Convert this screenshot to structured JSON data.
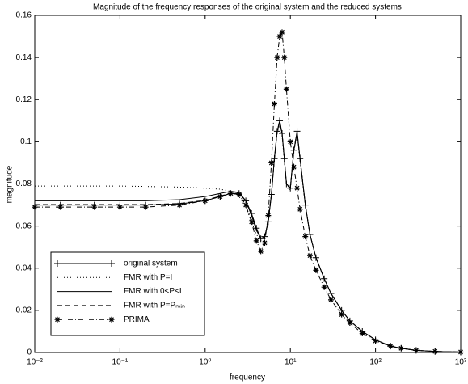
{
  "chart_data": {
    "type": "line",
    "title": "Magnitude of the frequency responses of the original system and the reduced systems",
    "x_label": "frequency",
    "y_label": "magnitude",
    "log_x": true,
    "xlim": [
      0.01,
      1000
    ],
    "xticks": [
      {
        "value": 0.01,
        "label": "10⁻²"
      },
      {
        "value": 0.1,
        "label": "10⁻¹"
      },
      {
        "value": 1,
        "label": "10⁰"
      },
      {
        "value": 10,
        "label": "10¹"
      },
      {
        "value": 100,
        "label": "10²"
      },
      {
        "value": 1000,
        "label": "10³"
      }
    ],
    "ylim": [
      0,
      0.16
    ],
    "yticks": [
      0,
      0.02,
      0.04,
      0.06,
      0.08,
      0.1,
      0.12,
      0.14,
      0.16
    ],
    "legend_position": "lower-left",
    "x": [
      0.01,
      0.02,
      0.05,
      0.1,
      0.2,
      0.5,
      1,
      1.5,
      2,
      2.5,
      3,
      3.5,
      4,
      4.5,
      5,
      5.5,
      6,
      6.5,
      7,
      7.5,
      8,
      8.5,
      9,
      10,
      11,
      12,
      13,
      15,
      17,
      20,
      25,
      30,
      40,
      50,
      70,
      100,
      150,
      200,
      300,
      500,
      1000
    ],
    "series": [
      {
        "name": "original system",
        "color": "#000000",
        "dash": "solid",
        "marker": "+",
        "values": [
          0.07,
          0.07,
          0.07,
          0.07,
          0.07,
          0.0705,
          0.072,
          0.074,
          0.0755,
          0.0755,
          0.072,
          0.066,
          0.059,
          0.054,
          0.055,
          0.062,
          0.075,
          0.092,
          0.105,
          0.11,
          0.104,
          0.092,
          0.08,
          0.078,
          0.096,
          0.105,
          0.092,
          0.07,
          0.056,
          0.045,
          0.035,
          0.028,
          0.02,
          0.015,
          0.01,
          0.006,
          0.003,
          0.002,
          0.001,
          0.0005,
          0.0002
        ]
      },
      {
        "name": "FMR with P=I",
        "color": "#000000",
        "dash": "dotted",
        "marker": "none",
        "values": [
          0.079,
          0.079,
          0.079,
          0.079,
          0.0788,
          0.0785,
          0.078,
          0.0775,
          0.0765,
          0.074,
          0.069,
          0.062,
          0.056,
          0.053,
          0.055,
          0.062,
          0.075,
          0.092,
          0.104,
          0.108,
          0.103,
          0.091,
          0.08,
          0.077,
          0.095,
          0.104,
          0.091,
          0.07,
          0.056,
          0.045,
          0.035,
          0.028,
          0.02,
          0.015,
          0.01,
          0.006,
          0.003,
          0.002,
          0.001,
          0.0005,
          0.0002
        ]
      },
      {
        "name": "FMR with 0<P<I",
        "color": "#000000",
        "dash": "solid",
        "marker": "none",
        "values": [
          0.072,
          0.072,
          0.072,
          0.072,
          0.072,
          0.0725,
          0.074,
          0.0755,
          0.0765,
          0.076,
          0.072,
          0.065,
          0.058,
          0.054,
          0.055,
          0.062,
          0.075,
          0.092,
          0.105,
          0.109,
          0.104,
          0.092,
          0.08,
          0.078,
          0.096,
          0.104,
          0.092,
          0.07,
          0.056,
          0.045,
          0.035,
          0.028,
          0.02,
          0.015,
          0.01,
          0.006,
          0.003,
          0.002,
          0.001,
          0.0005,
          0.0002
        ]
      },
      {
        "name": "FMR with P=Pₘᵢₙ",
        "color": "#000000",
        "dash": "dashed",
        "marker": "none",
        "values": [
          0.0702,
          0.0702,
          0.0702,
          0.0702,
          0.0702,
          0.0707,
          0.0722,
          0.0742,
          0.0757,
          0.0756,
          0.072,
          0.066,
          0.059,
          0.054,
          0.055,
          0.062,
          0.075,
          0.092,
          0.105,
          0.11,
          0.104,
          0.092,
          0.08,
          0.078,
          0.096,
          0.105,
          0.092,
          0.07,
          0.056,
          0.045,
          0.035,
          0.028,
          0.02,
          0.015,
          0.01,
          0.006,
          0.003,
          0.002,
          0.001,
          0.0005,
          0.0002
        ]
      },
      {
        "name": "PRIMA",
        "color": "#000000",
        "dash": "dashdot",
        "marker": "*",
        "values": [
          0.069,
          0.069,
          0.069,
          0.069,
          0.069,
          0.07,
          0.072,
          0.074,
          0.0755,
          0.075,
          0.07,
          0.062,
          0.053,
          0.048,
          0.052,
          0.065,
          0.09,
          0.118,
          0.14,
          0.15,
          0.152,
          0.14,
          0.125,
          0.1,
          0.088,
          0.078,
          0.068,
          0.055,
          0.046,
          0.039,
          0.031,
          0.025,
          0.018,
          0.014,
          0.009,
          0.0055,
          0.003,
          0.002,
          0.001,
          0.0005,
          0.0002
        ]
      }
    ]
  }
}
